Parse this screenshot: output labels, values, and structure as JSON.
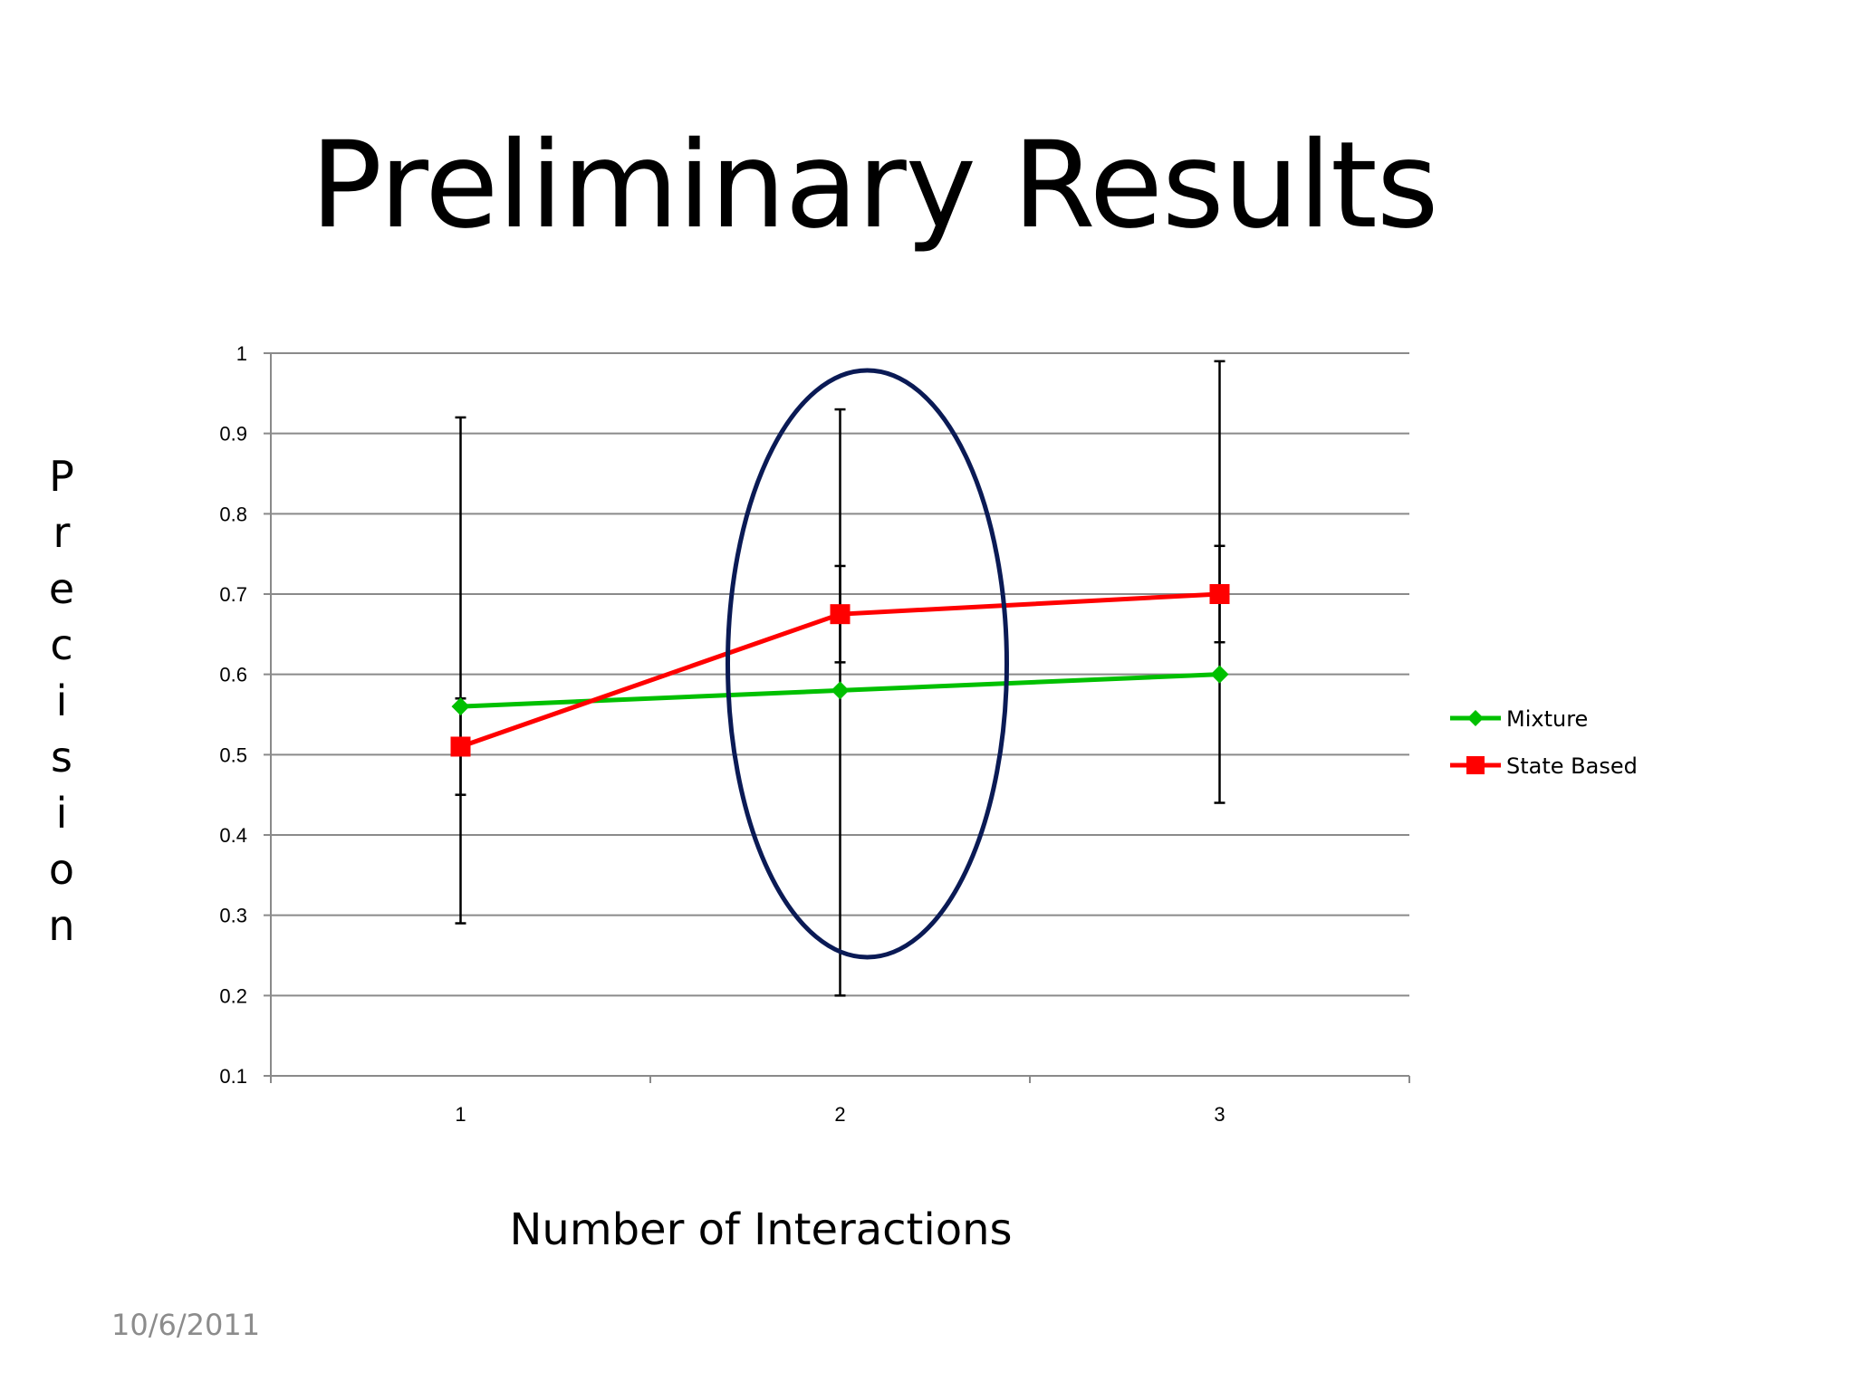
{
  "slide": {
    "title": "Preliminary Results",
    "ylabel_letters": [
      "P",
      "r",
      "e",
      "c",
      "i",
      "s",
      "i",
      "o",
      "n"
    ],
    "xlabel": "Number of Interactions",
    "date": "10/6/2011"
  },
  "chart_data": {
    "type": "line",
    "title": "",
    "xlabel": "Number of Interactions",
    "ylabel": "Precision",
    "categories": [
      "1",
      "2",
      "3"
    ],
    "ylim": [
      0.1,
      1
    ],
    "yticks": [
      "0.1",
      "0.2",
      "0.3",
      "0.4",
      "0.5",
      "0.6",
      "0.7",
      "0.8",
      "0.9",
      "1"
    ],
    "grid": true,
    "legend": "right",
    "series": [
      {
        "name": "Mixture",
        "color": "#00c000",
        "marker": "diamond",
        "values": [
          0.56,
          0.58,
          0.6
        ],
        "error_low": [
          0.29,
          0.2,
          0.44
        ],
        "error_high": [
          0.92,
          0.93,
          0.99
        ]
      },
      {
        "name": "State Based",
        "color": "#ff0000",
        "marker": "square",
        "values": [
          0.51,
          0.675,
          0.7
        ],
        "error_low": [
          0.45,
          0.615,
          0.64
        ],
        "error_high": [
          0.57,
          0.735,
          0.76
        ]
      }
    ],
    "annotation": {
      "shape": "ellipse",
      "around_category": "2",
      "color": "#0a1a55"
    }
  }
}
